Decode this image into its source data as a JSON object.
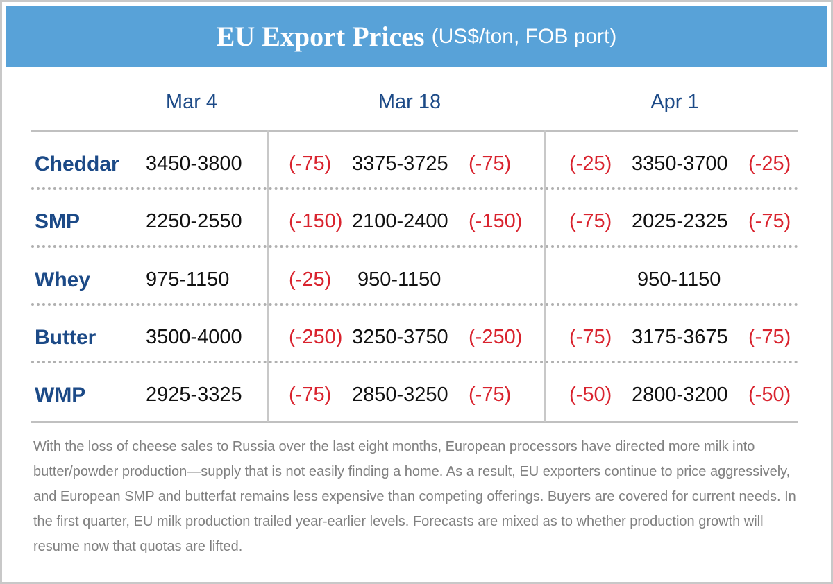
{
  "header": {
    "title": "EU Export Prices",
    "subtitle": "(US$/ton, FOB port)"
  },
  "table": {
    "columns": [
      "Mar 4",
      "Mar 18",
      "Apr 1"
    ],
    "rows": [
      {
        "product": "Cheddar",
        "mar4": "3450-3800",
        "mar18": {
          "low_change": "(-75)",
          "range": "3375-3725",
          "high_change": "(-75)"
        },
        "apr1": {
          "low_change": "(-25)",
          "range": "3350-3700",
          "high_change": "(-25)"
        }
      },
      {
        "product": "SMP",
        "mar4": "2250-2550",
        "mar18": {
          "low_change": "(-150)",
          "range": "2100-2400",
          "high_change": "(-150)"
        },
        "apr1": {
          "low_change": "(-75)",
          "range": "2025-2325",
          "high_change": "(-75)"
        }
      },
      {
        "product": "Whey",
        "mar4": "975-1150",
        "mar18": {
          "low_change": "(-25)",
          "range": "950-1150"
        },
        "apr1": {
          "range": "950-1150"
        }
      },
      {
        "product": "Butter",
        "mar4": "3500-4000",
        "mar18": {
          "low_change": "(-250)",
          "range": "3250-3750",
          "high_change": "(-250)"
        },
        "apr1": {
          "low_change": "(-75)",
          "range": "3175-3675",
          "high_change": "(-75)"
        }
      },
      {
        "product": "WMP",
        "mar4": "2925-3325",
        "mar18": {
          "low_change": "(-75)",
          "range": "2850-3250",
          "high_change": "(-75)"
        },
        "apr1": {
          "low_change": "(-50)",
          "range": "2800-3200",
          "high_change": "(-50)"
        }
      }
    ]
  },
  "footnote": "With the loss of cheese sales to Russia over the last eight months, European processors have directed more milk into butter/powder production—supply that is not easily finding a home. As a result, EU exporters continue to price aggressively, and European SMP and butterfat remains less expensive than competing offerings. Buyers are covered for current needs. In the first quarter, EU milk production trailed year-earlier levels. Forecasts are mixed as to whether production growth will resume now that quotas are lifted."
}
